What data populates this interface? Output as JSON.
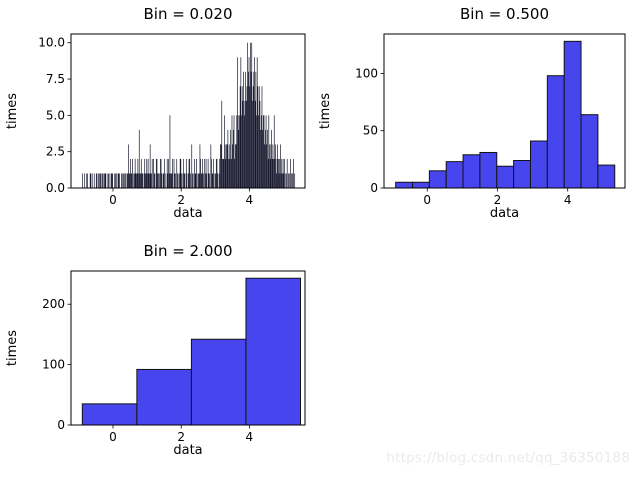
{
  "watermark": {
    "text": "https://blog.csdn.net/qq_36350188"
  },
  "colors": {
    "background": "#ffffff",
    "axis": "#000000",
    "bar_blue": "#4745ee",
    "bar_edge": "#131313",
    "bar_dark": "#15152c",
    "watermark": "#eaeaea"
  },
  "chart_data": [
    {
      "type": "bar",
      "variant": "histogram",
      "title": "Bin = 0.020",
      "xlabel": "data",
      "ylabel": "times",
      "xlim": [
        -1.232,
        5.632
      ],
      "ylim": [
        0,
        10.6
      ],
      "xticks": [
        {
          "v": 0,
          "label": "0"
        },
        {
          "v": 2,
          "label": "2"
        },
        {
          "v": 4,
          "label": "4"
        }
      ],
      "yticks": [
        {
          "v": 0,
          "label": "0.0"
        },
        {
          "v": 2.5,
          "label": "2.5"
        },
        {
          "v": 5,
          "label": "5.0"
        },
        {
          "v": 7.5,
          "label": "7.5"
        },
        {
          "v": 10,
          "label": "10.0"
        }
      ],
      "bin_start": -0.9,
      "bin_width": 0.02,
      "bar_style": "thin",
      "counts_encoding": "digit-per-bin;A=10",
      "counts_encoded": [
        "10010011000110100100110101",
        "1101101110011010111001101011100110110101",
        "131121120112111214112110121121",
        "211311202110221101221011201021",
        "21511",
        "1202110211012210121102101221031102112011",
        "132112102121021103211201122101",
        "2336222532334232425345233",
        "5954579576856867A897A8A67896859757645745",
        "534534253234232523123212312121",
        "2101201102101201"
      ]
    },
    {
      "type": "bar",
      "variant": "histogram",
      "title": "Bin = 0.500",
      "xlabel": "data",
      "ylabel": "times",
      "xlim": [
        -1.232,
        5.632
      ],
      "ylim": [
        0,
        134.4
      ],
      "xticks": [
        {
          "v": 0,
          "label": "0"
        },
        {
          "v": 2,
          "label": "2"
        },
        {
          "v": 4,
          "label": "4"
        }
      ],
      "yticks": [
        {
          "v": 0,
          "label": "0"
        },
        {
          "v": 50,
          "label": "50"
        },
        {
          "v": 100,
          "label": "100"
        }
      ],
      "bin_start": -0.9,
      "bin_width": 0.48,
      "bar_style": "filled",
      "counts": [
        5,
        5,
        15,
        23,
        29,
        31,
        19,
        24,
        41,
        98,
        128,
        64,
        20
      ]
    },
    {
      "type": "bar",
      "variant": "histogram",
      "title": "Bin = 2.000",
      "xlabel": "data",
      "ylabel": "times",
      "xlim": [
        -1.232,
        5.632
      ],
      "ylim": [
        0,
        255
      ],
      "xticks": [
        {
          "v": 0,
          "label": "0"
        },
        {
          "v": 2,
          "label": "2"
        },
        {
          "v": 4,
          "label": "4"
        }
      ],
      "yticks": [
        {
          "v": 0,
          "label": "0"
        },
        {
          "v": 100,
          "label": "100"
        },
        {
          "v": 200,
          "label": "200"
        }
      ],
      "bin_start": -0.9,
      "bin_width": 1.6,
      "bar_style": "filled",
      "counts": [
        35,
        92,
        142,
        243
      ]
    }
  ]
}
